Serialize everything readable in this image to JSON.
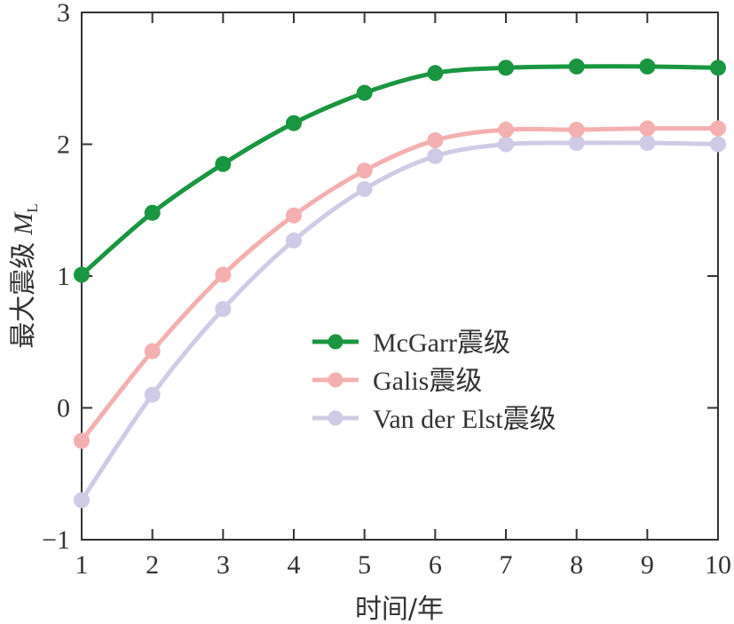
{
  "chart_data": {
    "type": "line",
    "xlabel": "时间/年",
    "ylabel": "最大震级",
    "ylabel_symbol": "M",
    "ylabel_subscript": "L",
    "x": [
      1,
      2,
      3,
      4,
      5,
      6,
      7,
      8,
      9,
      10
    ],
    "xlim": [
      1,
      10
    ],
    "ylim": [
      -1,
      3
    ],
    "xticks": [
      "1",
      "2",
      "3",
      "4",
      "5",
      "6",
      "7",
      "8",
      "9",
      "10"
    ],
    "yticks": [
      "−1",
      "0",
      "1",
      "2",
      "3"
    ],
    "grid": false,
    "legend_position": "center-right",
    "series": [
      {
        "name": "McGarr震级",
        "color": "#1a9641",
        "values": [
          1.01,
          1.48,
          1.85,
          2.16,
          2.39,
          2.54,
          2.58,
          2.59,
          2.59,
          2.58
        ]
      },
      {
        "name": "Galis震级",
        "color": "#f4b0b0",
        "values": [
          -0.25,
          0.43,
          1.01,
          1.46,
          1.8,
          2.03,
          2.11,
          2.11,
          2.12,
          2.12
        ]
      },
      {
        "name": "Van der Elst震级",
        "color": "#cfcbe6",
        "values": [
          -0.7,
          0.1,
          0.75,
          1.27,
          1.66,
          1.91,
          2.0,
          2.01,
          2.01,
          2.0
        ]
      }
    ]
  }
}
